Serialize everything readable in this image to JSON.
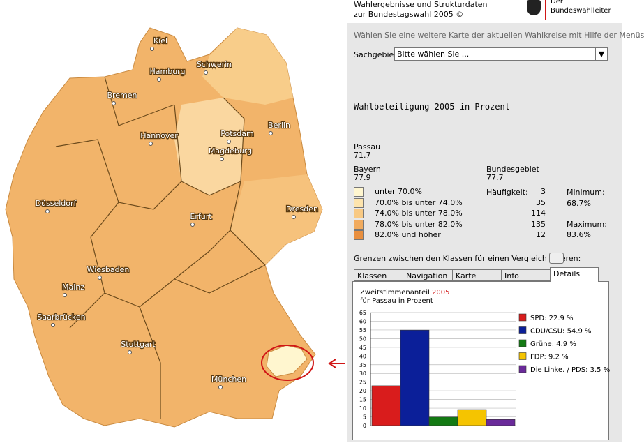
{
  "header": {
    "title_line1": "Wahlergebnisse und Strukturdaten",
    "title_line2": "zur Bundestagswahl 2005 ©",
    "logo_line1": "Der",
    "logo_line2": "Bundeswahlleiter"
  },
  "instruction": "Wählen Sie eine weitere Karte der aktuellen Wahlkreise mit Hilfe der Menüs",
  "sachgebiet": {
    "label": "Sachgebiet:",
    "select": "Bitte wählen Sie ..."
  },
  "map_title": "Wahlbeteiligung 2005 in Prozent",
  "region": {
    "name": "Passau",
    "value": "71.7"
  },
  "state": {
    "name": "Bayern",
    "value": "77.9"
  },
  "country": {
    "name": "Bundesgebiet",
    "value": "77.7"
  },
  "classes": {
    "frequency_label": "Häufigkeit:",
    "items": [
      {
        "label": "unter 70.0%",
        "count": 3,
        "color": "#fff6cf"
      },
      {
        "label": "70.0% bis unter 74.0%",
        "count": 35,
        "color": "#fde4ad"
      },
      {
        "label": "74.0% bis unter 78.0%",
        "count": 114,
        "color": "#f8c983"
      },
      {
        "label": "78.0% bis unter 82.0%",
        "count": 135,
        "color": "#f1ab5e"
      },
      {
        "label": "82.0% und höher",
        "count": 12,
        "color": "#e98f3e"
      }
    ],
    "minimum_label": "Minimum:",
    "minimum": "68.7%",
    "maximum_label": "Maximum:",
    "maximum": "83.6%"
  },
  "fix_label": "Grenzen zwischen den Klassen für einen Vergleich fixieren:",
  "tabs": [
    "Klassen",
    "Navigation",
    "Karte",
    "Info",
    "Details"
  ],
  "map_cities": [
    "Kiel",
    "Hamburg",
    "Schwerin",
    "Bremen",
    "Berlin",
    "Potsdam",
    "Hannover",
    "Magdeburg",
    "Düsseldorf",
    "Dresden",
    "Erfurt",
    "Wiesbaden",
    "Mainz",
    "Saarbrücken",
    "Stuttgart",
    "München"
  ],
  "chart_data": {
    "type": "bar",
    "title": "Zweitstimmenanteil",
    "title_year": "2005",
    "subtitle": "für Passau in Prozent",
    "values": [
      22.9,
      54.9,
      4.9,
      9.2,
      3.5
    ],
    "value_labels": [
      "SPD: 22.9 %",
      "CDU/CSU: 54.9 %",
      "Grüne: 4.9 %",
      "FDP: 9.2 %",
      "Die Linke. / PDS: 3.5 %"
    ],
    "colors": [
      "#d91c1c",
      "#0b1f99",
      "#137a13",
      "#f5c400",
      "#6a2a9a"
    ],
    "ylim": [
      0,
      65
    ],
    "yticks": [
      0,
      5,
      10,
      15,
      20,
      25,
      30,
      35,
      40,
      45,
      50,
      55,
      60,
      65
    ],
    "grid": true
  }
}
